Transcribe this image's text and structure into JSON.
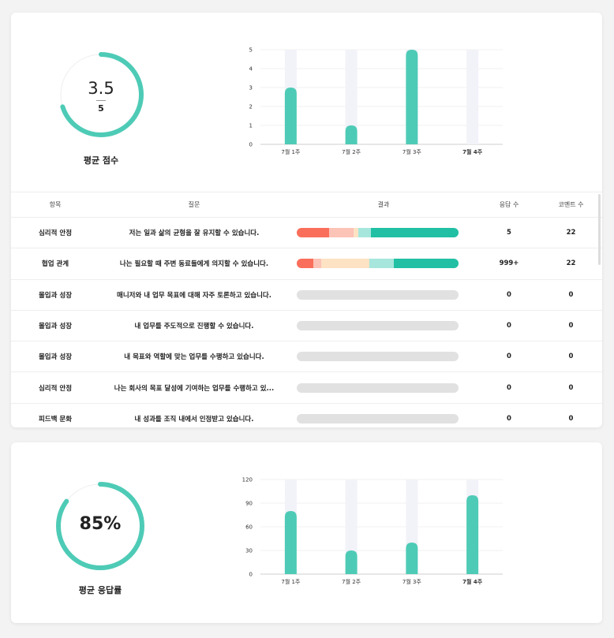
{
  "colors": {
    "accent": "#4ecbb6",
    "track": "#f2f2f9",
    "seg_red": "#fa6f5b",
    "seg_pink": "#fcc3b7",
    "seg_peach": "#fde2c3",
    "seg_mint": "#a6e6dd",
    "seg_teal": "#21c0a4",
    "empty": "#e1e1e1"
  },
  "score_card": {
    "score": "3.5",
    "max": "5",
    "score_fraction": 0.7,
    "label": "평균 점수",
    "chart_data": {
      "type": "bar",
      "categories": [
        "7월 1주",
        "7월 2주",
        "7월 3주",
        "7월 4주"
      ],
      "values": [
        3,
        1,
        5,
        0
      ],
      "yticks": [
        "0",
        "1",
        "2",
        "3",
        "4",
        "5"
      ],
      "ylim": [
        0,
        5
      ],
      "title": "",
      "xlabel": "",
      "ylabel": ""
    }
  },
  "table": {
    "headers": {
      "category": "항목",
      "question": "질문",
      "result": "결과",
      "responses": "응답 수",
      "comments": "코멘트 수"
    },
    "rows": [
      {
        "category": "심리적 안정",
        "question": "저는 일과 삶의 균형을 잘 유지할 수 있습니다.",
        "responses": "5",
        "comments": "22",
        "segments": [
          {
            "color": "#fa6f5b",
            "fraction": 0.2
          },
          {
            "color": "#fcc3b7",
            "fraction": 0.15
          },
          {
            "color": "#fde2c3",
            "fraction": 0.03
          },
          {
            "color": "#a6e6dd",
            "fraction": 0.08
          },
          {
            "color": "#21c0a4",
            "fraction": 0.54
          }
        ]
      },
      {
        "category": "협업 관계",
        "question": "나는 필요할 때 주변 동료들에게 의지할 수 있습니다.",
        "responses": "999+",
        "comments": "22",
        "segments": [
          {
            "color": "#fa6f5b",
            "fraction": 0.1
          },
          {
            "color": "#fcc3b7",
            "fraction": 0.05
          },
          {
            "color": "#fde2c3",
            "fraction": 0.3
          },
          {
            "color": "#a6e6dd",
            "fraction": 0.15
          },
          {
            "color": "#21c0a4",
            "fraction": 0.4
          }
        ]
      },
      {
        "category": "몰입과 성장",
        "question": "매니저와 내 업무 목표에 대해 자주 토론하고 있습니다.",
        "responses": "0",
        "comments": "0",
        "segments": []
      },
      {
        "category": "몰입과 성장",
        "question": "내 업무를 주도적으로 진행할 수 있습니다.",
        "responses": "0",
        "comments": "0",
        "segments": []
      },
      {
        "category": "몰입과 성장",
        "question": "내 목표와 역할에 맞는 업무를 수행하고 있습니다.",
        "responses": "0",
        "comments": "0",
        "segments": []
      },
      {
        "category": "심리적 안정",
        "question": "나는 회사의 목표 달성에 기여하는 업무를 수행하고 있...",
        "responses": "0",
        "comments": "0",
        "segments": []
      },
      {
        "category": "피드백 문화",
        "question": "내 성과를 조직 내에서 인정받고 있습니다.",
        "responses": "0",
        "comments": "0",
        "segments": []
      }
    ]
  },
  "rate_card": {
    "rate": "85%",
    "rate_fraction": 0.85,
    "label": "평균 응답률",
    "chart_data": {
      "type": "bar",
      "categories": [
        "7월 1주",
        "7월 2주",
        "7월 3주",
        "7월 4주"
      ],
      "values": [
        80,
        30,
        40,
        100
      ],
      "yticks": [
        "0",
        "30",
        "60",
        "90",
        "120"
      ],
      "ylim": [
        0,
        120
      ],
      "title": "",
      "xlabel": "",
      "ylabel": ""
    }
  }
}
